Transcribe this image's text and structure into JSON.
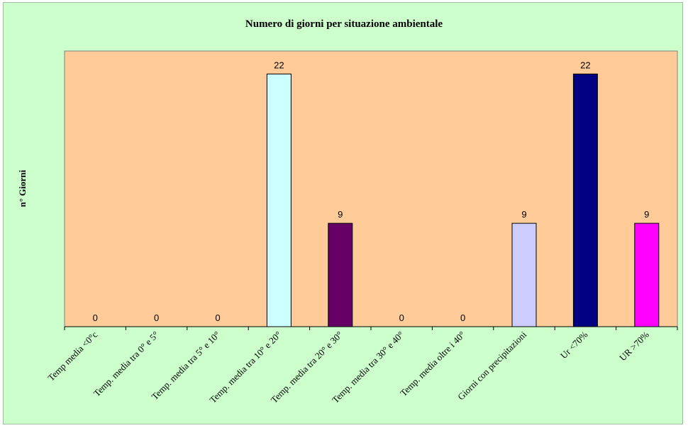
{
  "chart_data": {
    "type": "bar",
    "title": "Numero di giorni per situazione ambientale",
    "ylabel": "n° Giorni",
    "xlabel": "",
    "ylim": [
      0,
      24
    ],
    "grid": false,
    "legend": "none",
    "plot_background": "#ffcc99",
    "chart_background": "#ccffcc",
    "categories": [
      "Temp media <0°c",
      "Temp. media tra 0° e 5°",
      "Temp. media tra 5° e 10°",
      "Temp. media tra 10° e 20°",
      "Temp. media tra 20° e 30°",
      "Temp. media tra 30° e 40°",
      "Temp. media oltre i 40°",
      "Giorni con precipitazioni",
      "Ur <70%",
      "UR >70%"
    ],
    "values": [
      0,
      0,
      0,
      22,
      9,
      0,
      0,
      9,
      22,
      9
    ],
    "bar_colors": [
      "#ccffff",
      "#ccffff",
      "#ccffff",
      "#ccffff",
      "#660066",
      "#ccffff",
      "#ccffff",
      "#ccccff",
      "#000080",
      "#ff00ff"
    ]
  }
}
